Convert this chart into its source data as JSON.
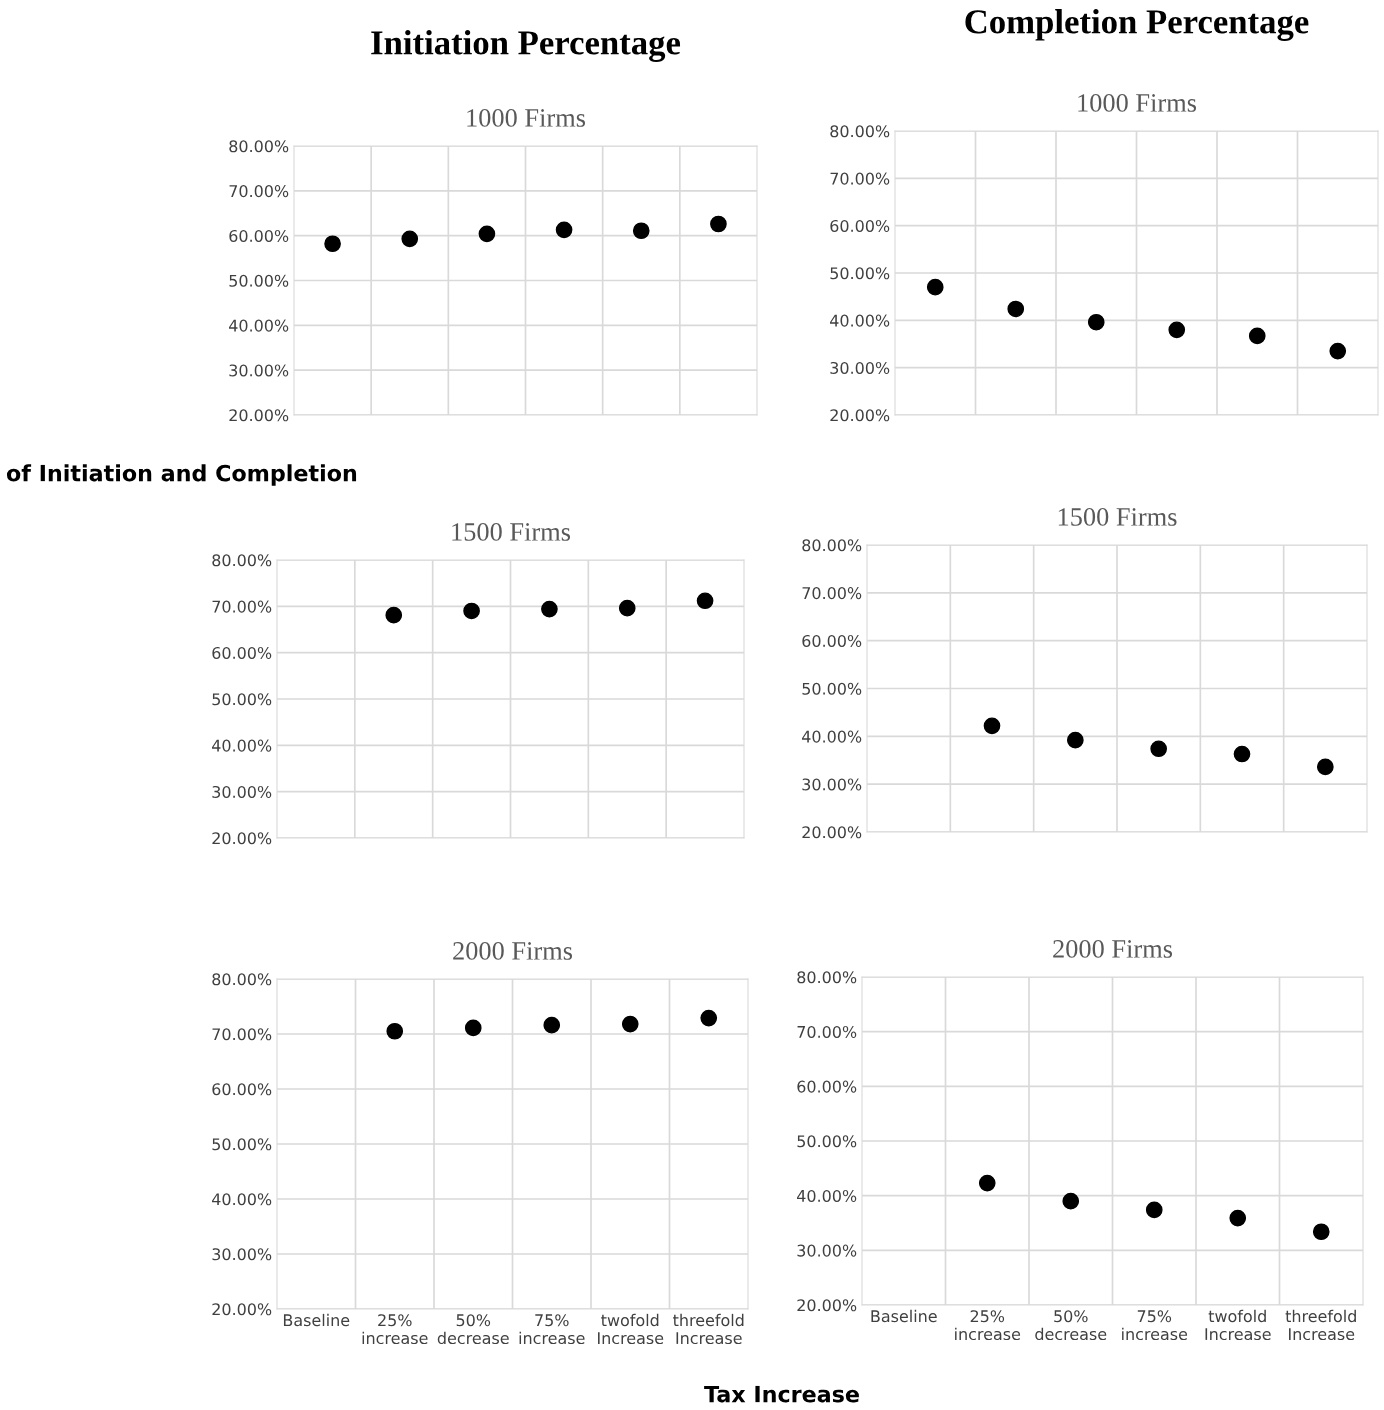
{
  "chart_data": [
    {
      "type": "scatter",
      "title": "1000 Firms",
      "annotations": [
        "Initiation Percentage"
      ],
      "categories": [
        null,
        null,
        null,
        null,
        null,
        null
      ],
      "values": [
        58.2,
        59.3,
        60.4,
        61.3,
        61.1,
        62.6
      ],
      "color": "#000000",
      "marker": "circle",
      "ylim": [
        20,
        80
      ],
      "yticks": [
        {
          "value": 20,
          "label": "20.00%"
        },
        {
          "value": 30,
          "label": "30.00%"
        },
        {
          "value": 40,
          "label": "40.00%"
        },
        {
          "value": 50,
          "label": "50.00%"
        },
        {
          "value": 60,
          "label": "60.00%"
        },
        {
          "value": 70,
          "label": "70.00%"
        },
        {
          "value": 80,
          "label": "80.00%"
        }
      ],
      "grid": true,
      "tick_labels": "y"
    },
    {
      "type": "scatter",
      "title": "1000 Firms",
      "annotations": [
        "Completion Percentage"
      ],
      "categories": [
        null,
        null,
        null,
        null,
        null,
        null
      ],
      "values": [
        47.0,
        42.4,
        39.6,
        38.0,
        36.7,
        33.5
      ],
      "color": "#000000",
      "marker": "circle",
      "ylim": [
        20,
        80
      ],
      "yticks": [
        {
          "value": 20,
          "label": "20.00%"
        },
        {
          "value": 30,
          "label": "30.00%"
        },
        {
          "value": 40,
          "label": "40.00%"
        },
        {
          "value": 50,
          "label": "50.00%"
        },
        {
          "value": 60,
          "label": "60.00%"
        },
        {
          "value": 70,
          "label": "70.00%"
        },
        {
          "value": 80,
          "label": "80.00%"
        }
      ],
      "grid": true,
      "tick_labels": "y"
    },
    {
      "type": "scatter",
      "title": "1500 Firms",
      "ylabel": "of Initiation and Completion",
      "categories": [
        null,
        null,
        null,
        null,
        null,
        null
      ],
      "values": [
        null,
        68.1,
        69.0,
        69.4,
        69.6,
        71.2
      ],
      "color": "#000000",
      "marker": "circle",
      "ylim": [
        20,
        80
      ],
      "yticks": [
        {
          "value": 20,
          "label": "20.00%"
        },
        {
          "value": 30,
          "label": "30.00%"
        },
        {
          "value": 40,
          "label": "40.00%"
        },
        {
          "value": 50,
          "label": "50.00%"
        },
        {
          "value": 60,
          "label": "60.00%"
        },
        {
          "value": 70,
          "label": "70.00%"
        },
        {
          "value": 80,
          "label": "80.00%"
        }
      ],
      "grid": true,
      "tick_labels": "y"
    },
    {
      "type": "scatter",
      "title": "1500 Firms",
      "categories": [
        null,
        null,
        null,
        null,
        null,
        null
      ],
      "values": [
        null,
        42.2,
        39.2,
        37.4,
        36.3,
        33.6
      ],
      "color": "#000000",
      "marker": "circle",
      "ylim": [
        20,
        80
      ],
      "yticks": [
        {
          "value": 20,
          "label": "20.00%"
        },
        {
          "value": 30,
          "label": "30.00%"
        },
        {
          "value": 40,
          "label": "40.00%"
        },
        {
          "value": 50,
          "label": "50.00%"
        },
        {
          "value": 60,
          "label": "60.00%"
        },
        {
          "value": 70,
          "label": "70.00%"
        },
        {
          "value": 80,
          "label": "80.00%"
        }
      ],
      "grid": true,
      "tick_labels": "y"
    },
    {
      "type": "scatter",
      "title": "2000 Firms",
      "categories": [
        "Baseline",
        "25%\nincrease",
        "50%\ndecrease",
        "75%\nincrease",
        "twofold\nIncrease",
        "threefold\nIncrease"
      ],
      "values": [
        null,
        70.5,
        71.1,
        71.6,
        71.8,
        72.9
      ],
      "color": "#000000",
      "marker": "circle",
      "ylim": [
        20,
        80
      ],
      "yticks": [
        {
          "value": 20,
          "label": "20.00%"
        },
        {
          "value": 30,
          "label": "30.00%"
        },
        {
          "value": 40,
          "label": "40.00%"
        },
        {
          "value": 50,
          "label": "50.00%"
        },
        {
          "value": 60,
          "label": "60.00%"
        },
        {
          "value": 70,
          "label": "70.00%"
        },
        {
          "value": 80,
          "label": "80.00%"
        }
      ],
      "grid": true
    },
    {
      "type": "scatter",
      "title": "2000 Firms",
      "xlabel": "Tax Increase",
      "categories": [
        "Baseline",
        "25%\nincrease",
        "50%\ndecrease",
        "75%\nincrease",
        "twofold\nIncrease",
        "threefold\nIncrease"
      ],
      "values": [
        null,
        42.3,
        39.0,
        37.4,
        35.9,
        33.4
      ],
      "color": "#000000",
      "marker": "circle",
      "ylim": [
        20,
        80
      ],
      "yticks": [
        {
          "value": 20,
          "label": "20.00%"
        },
        {
          "value": 30,
          "label": "30.00%"
        },
        {
          "value": 40,
          "label": "40.00%"
        },
        {
          "value": 50,
          "label": "50.00%"
        },
        {
          "value": 60,
          "label": "60.00%"
        },
        {
          "value": 70,
          "label": "70.00%"
        },
        {
          "value": 80,
          "label": "80.00%"
        }
      ],
      "grid": true
    }
  ]
}
